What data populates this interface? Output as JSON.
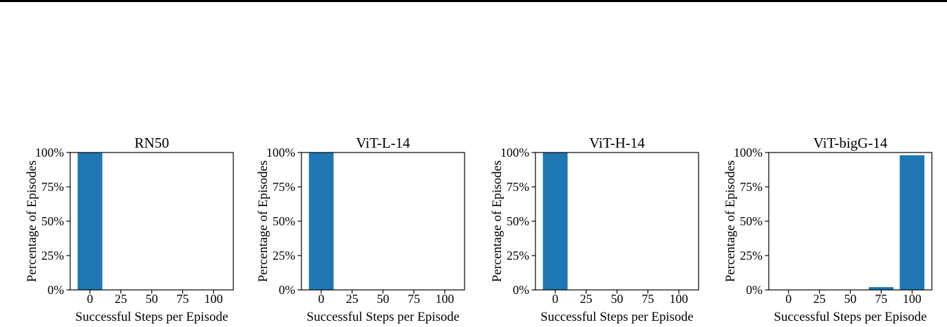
{
  "page": {
    "background": "#ffffff",
    "top_rule_color": "#000000"
  },
  "chart_data": [
    {
      "type": "bar",
      "title": "RN50",
      "xlabel": "Successful Steps per Episode",
      "ylabel": "Percentage of Episodes",
      "x_ticks": [
        0,
        25,
        50,
        75,
        100
      ],
      "y_tick_labels": [
        "0%",
        "25%",
        "50%",
        "75%",
        "100%"
      ],
      "y_tick_values": [
        0,
        25,
        50,
        75,
        100
      ],
      "xlim": [
        -16,
        116
      ],
      "ylim": [
        0,
        100
      ],
      "grid": false,
      "legend": null,
      "bar_color": "#1f77b4",
      "bin_width": 20,
      "bars": [
        {
          "center": 0,
          "height_pct": 100
        }
      ]
    },
    {
      "type": "bar",
      "title": "ViT-L-14",
      "xlabel": "Successful Steps per Episode",
      "ylabel": "Percentage of Episodes",
      "x_ticks": [
        0,
        25,
        50,
        75,
        100
      ],
      "y_tick_labels": [
        "0%",
        "25%",
        "50%",
        "75%",
        "100%"
      ],
      "y_tick_values": [
        0,
        25,
        50,
        75,
        100
      ],
      "xlim": [
        -16,
        116
      ],
      "ylim": [
        0,
        100
      ],
      "grid": false,
      "legend": null,
      "bar_color": "#1f77b4",
      "bin_width": 20,
      "bars": [
        {
          "center": 0,
          "height_pct": 100
        }
      ]
    },
    {
      "type": "bar",
      "title": "ViT-H-14",
      "xlabel": "Successful Steps per Episode",
      "ylabel": "Percentage of Episodes",
      "x_ticks": [
        0,
        25,
        50,
        75,
        100
      ],
      "y_tick_labels": [
        "0%",
        "25%",
        "50%",
        "75%",
        "100%"
      ],
      "y_tick_values": [
        0,
        25,
        50,
        75,
        100
      ],
      "xlim": [
        -16,
        116
      ],
      "ylim": [
        0,
        100
      ],
      "grid": false,
      "legend": null,
      "bar_color": "#1f77b4",
      "bin_width": 20,
      "bars": [
        {
          "center": 0,
          "height_pct": 100
        }
      ]
    },
    {
      "type": "bar",
      "title": "ViT-bigG-14",
      "xlabel": "Successful Steps per Episode",
      "ylabel": "Percentage of Episodes",
      "x_ticks": [
        0,
        25,
        50,
        75,
        100
      ],
      "y_tick_labels": [
        "0%",
        "25%",
        "50%",
        "75%",
        "100%"
      ],
      "y_tick_values": [
        0,
        25,
        50,
        75,
        100
      ],
      "xlim": [
        -16,
        116
      ],
      "ylim": [
        0,
        100
      ],
      "grid": false,
      "legend": null,
      "bar_color": "#1f77b4",
      "bin_width": 20,
      "bars": [
        {
          "center": 75,
          "height_pct": 2
        },
        {
          "center": 100,
          "height_pct": 98
        }
      ]
    }
  ]
}
